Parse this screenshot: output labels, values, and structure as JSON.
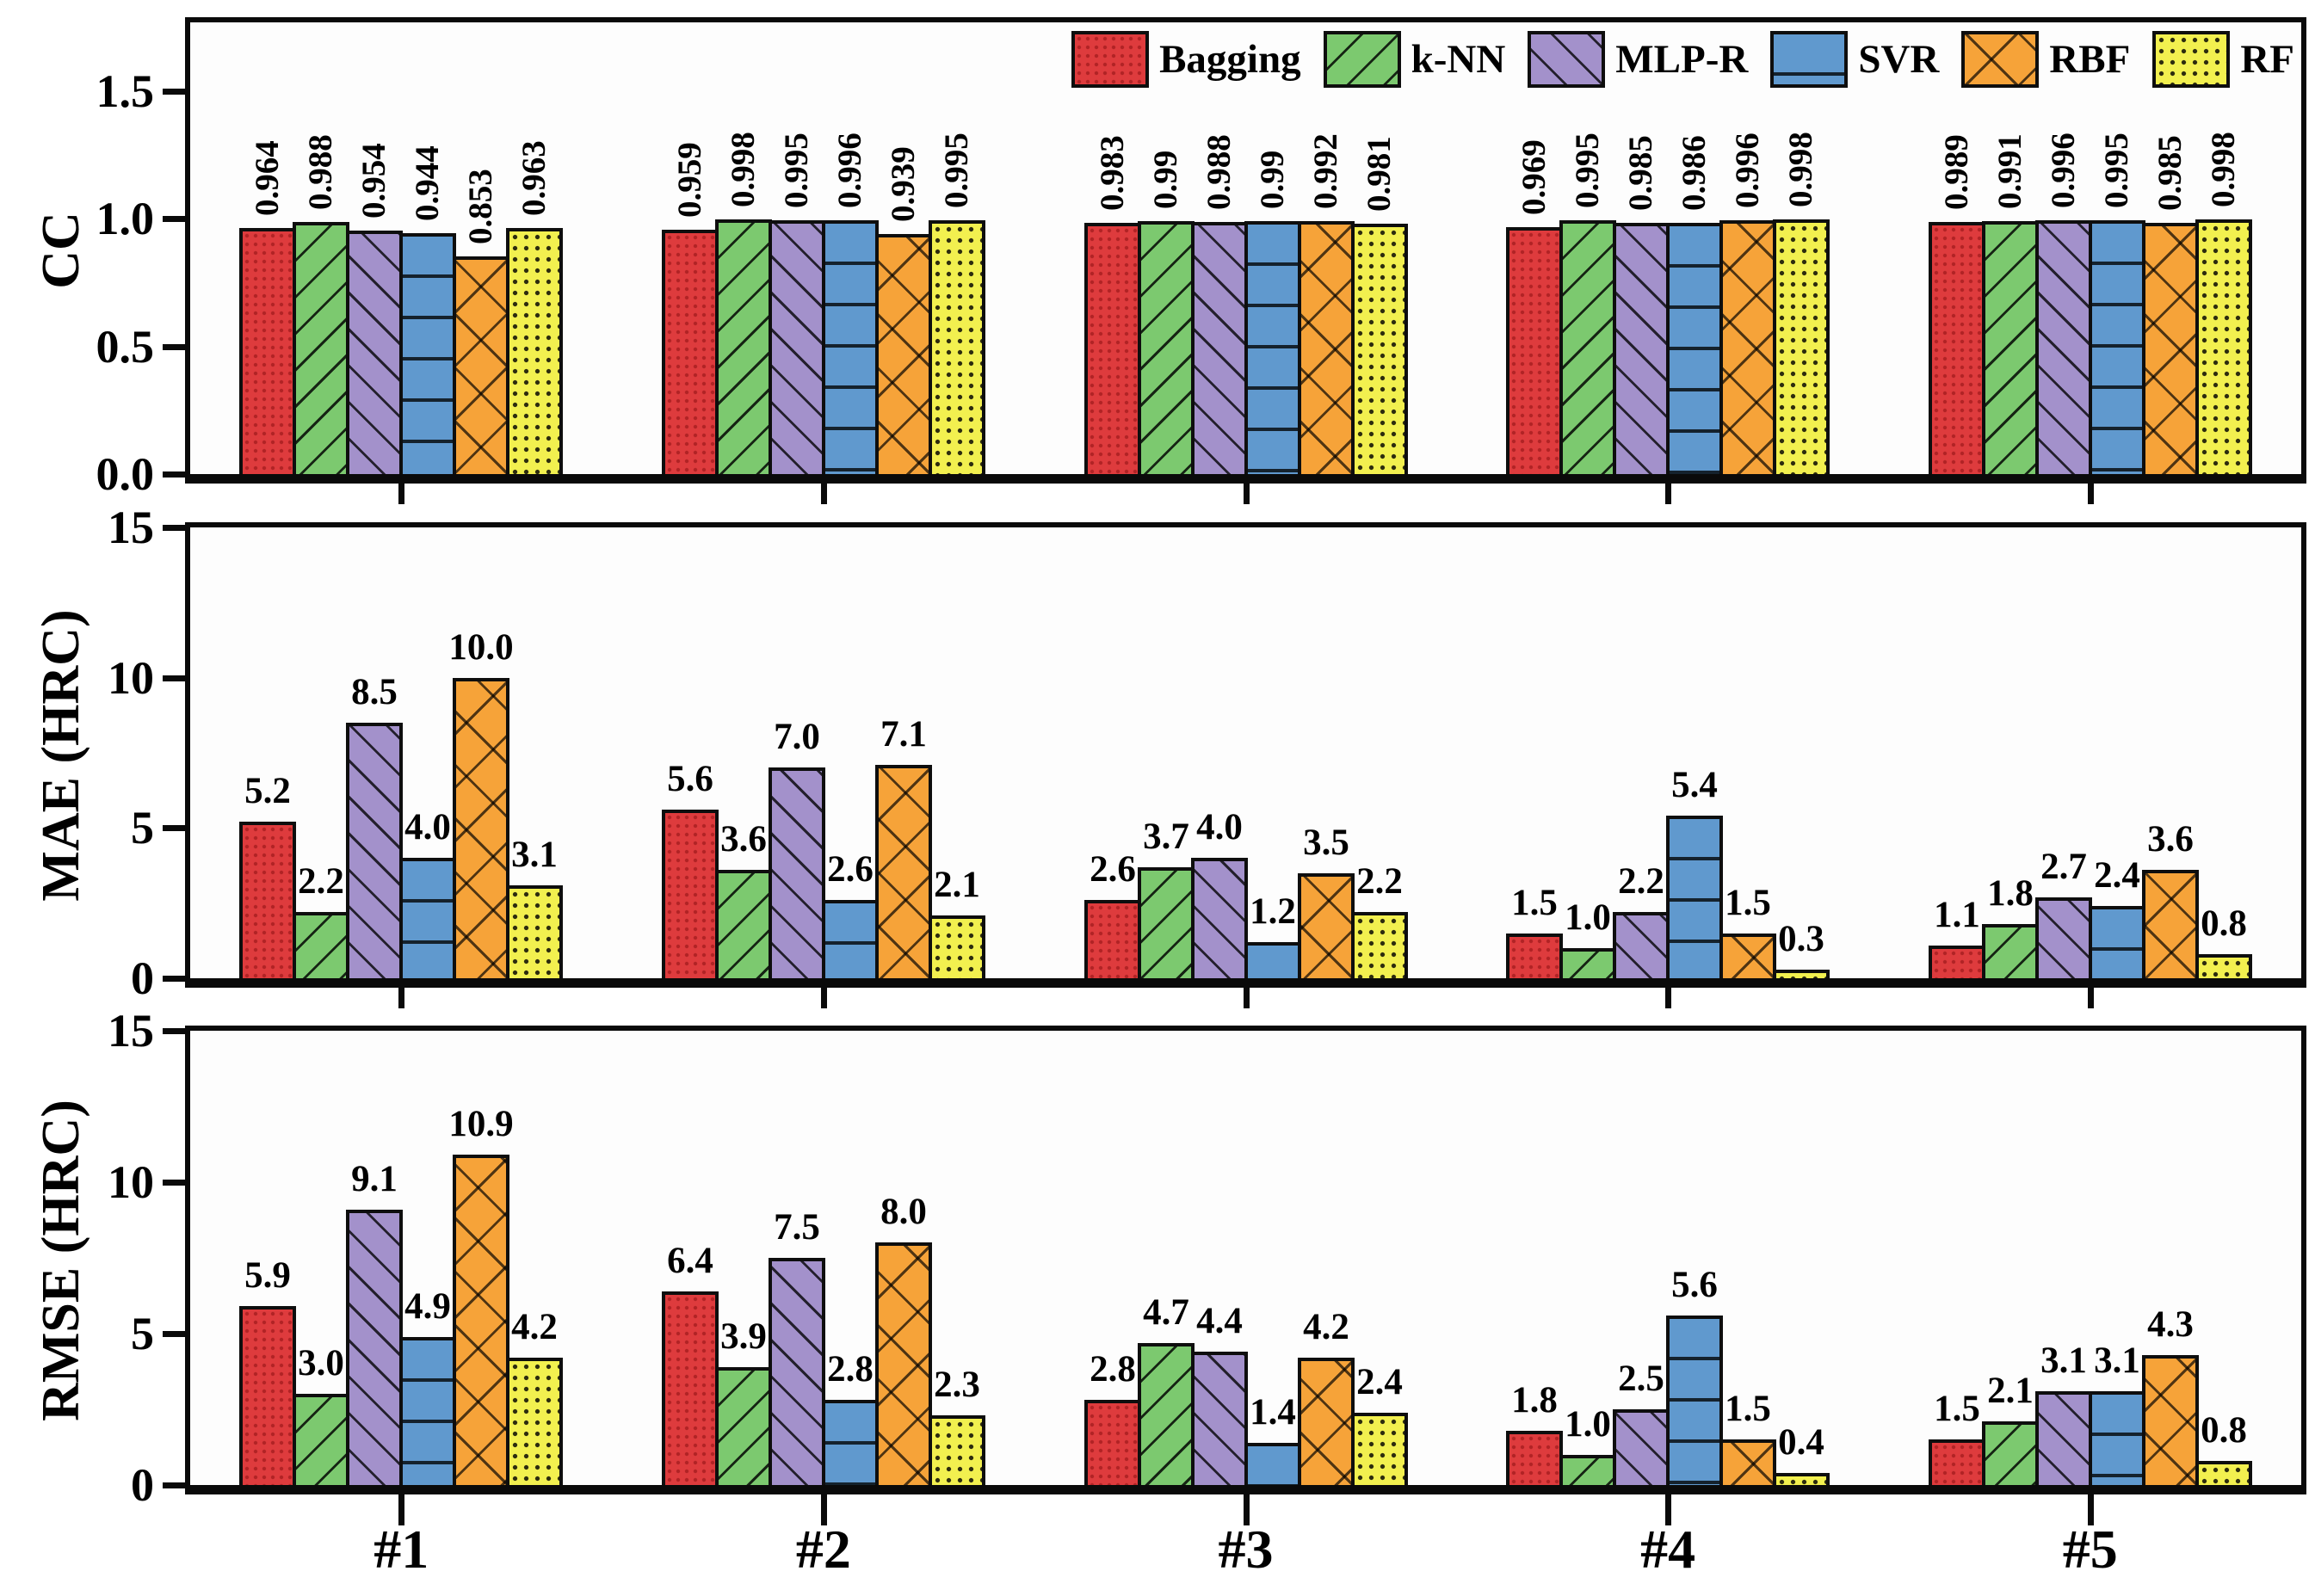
{
  "chart_data": {
    "type": "bar",
    "categories": [
      "#1",
      "#2",
      "#3",
      "#4",
      "#5"
    ],
    "series_meta": [
      {
        "name": "Bagging",
        "color": "#de3b3d",
        "pattern": "fine-dots"
      },
      {
        "name": "k-NN",
        "color": "#7cc96f",
        "pattern": "diag-up"
      },
      {
        "name": "MLP-R",
        "color": "#a391cb",
        "pattern": "diag-down"
      },
      {
        "name": "SVR",
        "color": "#6099ce",
        "pattern": "horiz"
      },
      {
        "name": "RBF",
        "color": "#f6a339",
        "pattern": "cross"
      },
      {
        "name": "RF",
        "color": "#f2f04f",
        "pattern": "dots"
      }
    ],
    "legend_position": "top-right-inside-first-panel",
    "grid": "off",
    "panels": [
      {
        "ylabel": "CC",
        "ymax": 1.77,
        "yticks": [
          {
            "label": "0.0",
            "value": 0
          },
          {
            "label": "0.5",
            "value": 0.5
          },
          {
            "label": "1.0",
            "value": 1.0
          },
          {
            "label": "1.5",
            "value": 1.5
          }
        ],
        "value_label_style": "rotated",
        "series": [
          {
            "name": "Bagging",
            "labels": [
              "0.964",
              "0.959",
              "0.983",
              "0.969",
              "0.989"
            ]
          },
          {
            "name": "k-NN",
            "labels": [
              "0.988",
              "0.998",
              "0.99",
              "0.995",
              "0.991"
            ]
          },
          {
            "name": "MLP-R",
            "labels": [
              "0.954",
              "0.995",
              "0.988",
              "0.985",
              "0.996"
            ]
          },
          {
            "name": "SVR",
            "labels": [
              "0.944",
              "0.996",
              "0.99",
              "0.986",
              "0.995"
            ]
          },
          {
            "name": "RBF",
            "labels": [
              "0.853",
              "0.939",
              "0.992",
              "0.996",
              "0.985"
            ]
          },
          {
            "name": "RF",
            "labels": [
              "0.963",
              "0.995",
              "0.981",
              "0.998",
              "0.998"
            ]
          }
        ]
      },
      {
        "ylabel": "MAE (HRC)",
        "ymax": 15,
        "yticks": [
          {
            "label": "0",
            "value": 0
          },
          {
            "label": "5",
            "value": 5
          },
          {
            "label": "10",
            "value": 10
          },
          {
            "label": "15",
            "value": 15
          }
        ],
        "value_label_style": "horizontal",
        "series": [
          {
            "name": "Bagging",
            "labels": [
              "5.2",
              "5.6",
              "2.6",
              "1.5",
              "1.1"
            ]
          },
          {
            "name": "k-NN",
            "labels": [
              "2.2",
              "3.6",
              "3.7",
              "1.0",
              "1.8"
            ]
          },
          {
            "name": "MLP-R",
            "labels": [
              "8.5",
              "7.0",
              "4.0",
              "2.2",
              "2.7"
            ]
          },
          {
            "name": "SVR",
            "labels": [
              "4.0",
              "2.6",
              "1.2",
              "5.4",
              "2.4"
            ]
          },
          {
            "name": "RBF",
            "labels": [
              "10.0",
              "7.1",
              "3.5",
              "1.5",
              "3.6"
            ]
          },
          {
            "name": "RF",
            "labels": [
              "3.1",
              "2.1",
              "2.2",
              "0.3",
              "0.8"
            ]
          }
        ]
      },
      {
        "ylabel": "RMSE (HRC)",
        "ymax": 15,
        "yticks": [
          {
            "label": "0",
            "value": 0
          },
          {
            "label": "5",
            "value": 5
          },
          {
            "label": "10",
            "value": 10
          },
          {
            "label": "15",
            "value": 15
          }
        ],
        "value_label_style": "horizontal",
        "series": [
          {
            "name": "Bagging",
            "labels": [
              "5.9",
              "6.4",
              "2.8",
              "1.8",
              "1.5"
            ]
          },
          {
            "name": "k-NN",
            "labels": [
              "3.0",
              "3.9",
              "4.7",
              "1.0",
              "2.1"
            ]
          },
          {
            "name": "MLP-R",
            "labels": [
              "9.1",
              "7.5",
              "4.4",
              "2.5",
              "3.1"
            ]
          },
          {
            "name": "SVR",
            "labels": [
              "4.9",
              "2.8",
              "1.4",
              "5.6",
              "3.1"
            ]
          },
          {
            "name": "RBF",
            "labels": [
              "10.9",
              "8.0",
              "4.2",
              "1.5",
              "4.3"
            ]
          },
          {
            "name": "RF",
            "labels": [
              "4.2",
              "2.3",
              "2.4",
              "0.4",
              "0.8"
            ]
          }
        ]
      }
    ]
  }
}
